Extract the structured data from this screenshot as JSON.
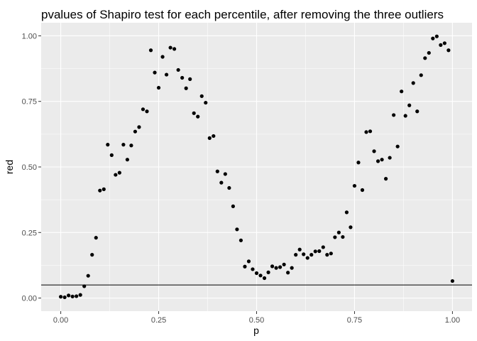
{
  "chart_data": {
    "type": "scatter",
    "title": "pvalues of Shapiro test for each percentile, after removing the three outliers",
    "xlabel": "p",
    "ylabel": "red",
    "xlim": [
      -0.05,
      1.05
    ],
    "ylim": [
      -0.05,
      1.05
    ],
    "xticks": [
      0.0,
      0.25,
      0.5,
      0.75,
      1.0
    ],
    "xtick_labels": [
      "0.00",
      "0.25",
      "0.50",
      "0.75",
      "1.00"
    ],
    "yticks": [
      0.0,
      0.25,
      0.5,
      0.75,
      1.0
    ],
    "ytick_labels": [
      "0.00",
      "0.25",
      "0.50",
      "0.75",
      "1.00"
    ],
    "grid": true,
    "hline": 0.05,
    "colors": {
      "panel": "#ebebeb",
      "grid": "#ffffff",
      "point": "#000000",
      "hline": "#000000"
    },
    "x": [
      0.0,
      0.01,
      0.02,
      0.03,
      0.04,
      0.05,
      0.06,
      0.07,
      0.08,
      0.09,
      0.1,
      0.11,
      0.12,
      0.13,
      0.14,
      0.15,
      0.16,
      0.17,
      0.18,
      0.19,
      0.2,
      0.21,
      0.22,
      0.23,
      0.24,
      0.25,
      0.26,
      0.27,
      0.28,
      0.29,
      0.3,
      0.31,
      0.32,
      0.33,
      0.34,
      0.35,
      0.36,
      0.37,
      0.38,
      0.39,
      0.4,
      0.41,
      0.42,
      0.43,
      0.44,
      0.45,
      0.46,
      0.47,
      0.48,
      0.49,
      0.5,
      0.51,
      0.52,
      0.53,
      0.54,
      0.55,
      0.56,
      0.57,
      0.58,
      0.59,
      0.6,
      0.61,
      0.62,
      0.63,
      0.64,
      0.65,
      0.66,
      0.67,
      0.68,
      0.69,
      0.7,
      0.71,
      0.72,
      0.73,
      0.74,
      0.75,
      0.76,
      0.77,
      0.78,
      0.79,
      0.8,
      0.81,
      0.82,
      0.83,
      0.84,
      0.85,
      0.86,
      0.87,
      0.88,
      0.89,
      0.9,
      0.91,
      0.92,
      0.93,
      0.94,
      0.95,
      0.96,
      0.97,
      0.98,
      0.99,
      1.0
    ],
    "y": [
      0.005,
      0.003,
      0.01,
      0.006,
      0.007,
      0.012,
      0.045,
      0.085,
      0.165,
      0.23,
      0.41,
      0.415,
      0.585,
      0.545,
      0.47,
      0.478,
      0.585,
      0.528,
      0.582,
      0.635,
      0.652,
      0.72,
      0.712,
      0.945,
      0.86,
      0.802,
      0.92,
      0.852,
      0.955,
      0.95,
      0.87,
      0.84,
      0.8,
      0.835,
      0.705,
      0.692,
      0.77,
      0.745,
      0.61,
      0.618,
      0.483,
      0.44,
      0.473,
      0.42,
      0.35,
      0.262,
      0.22,
      0.12,
      0.14,
      0.11,
      0.095,
      0.086,
      0.076,
      0.098,
      0.121,
      0.115,
      0.118,
      0.128,
      0.097,
      0.115,
      0.165,
      0.185,
      0.167,
      0.153,
      0.165,
      0.178,
      0.179,
      0.194,
      0.165,
      0.17,
      0.232,
      0.25,
      0.233,
      0.327,
      0.27,
      0.428,
      0.517,
      0.412,
      0.633,
      0.636,
      0.56,
      0.522,
      0.528,
      0.455,
      0.535,
      0.698,
      0.578,
      0.788,
      0.695,
      0.735,
      0.82,
      0.712,
      0.85,
      0.915,
      0.935,
      0.99,
      0.998,
      0.965,
      0.972,
      0.945,
      0.065
    ]
  }
}
